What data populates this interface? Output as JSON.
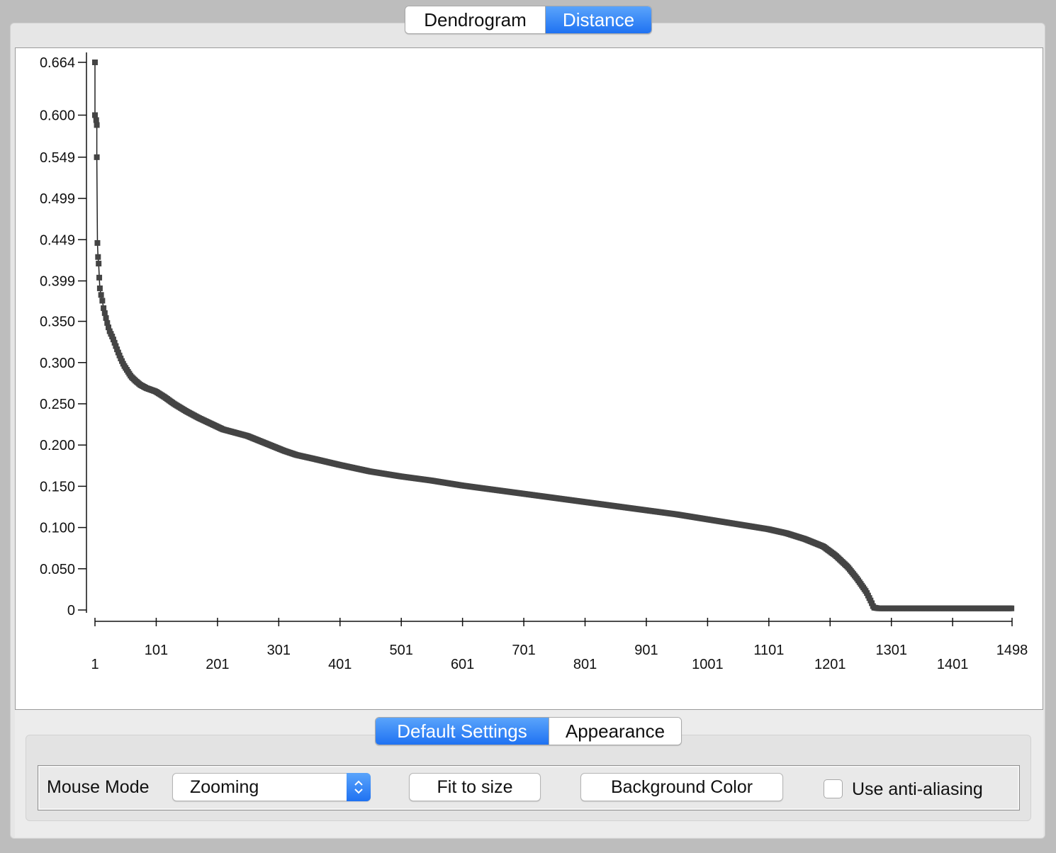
{
  "top_tabs": [
    {
      "label": "Dendrogram",
      "active": false
    },
    {
      "label": "Distance",
      "active": true
    }
  ],
  "chart_data": {
    "type": "scatter",
    "title": "",
    "xlabel": "",
    "ylabel": "",
    "xlim": [
      1,
      1498
    ],
    "ylim": [
      0,
      0.664
    ],
    "x_ticks": [
      1,
      101,
      201,
      301,
      401,
      501,
      601,
      701,
      801,
      901,
      1001,
      1101,
      1201,
      1301,
      1401,
      1498
    ],
    "y_ticks": [
      0,
      0.05,
      0.1,
      0.15,
      0.2,
      0.25,
      0.3,
      0.35,
      0.399,
      0.449,
      0.499,
      0.549,
      0.6,
      0.664
    ],
    "y_tick_labels": [
      "0",
      "0.050",
      "0.100",
      "0.150",
      "0.200",
      "0.250",
      "0.300",
      "0.350",
      "0.399",
      "0.449",
      "0.499",
      "0.549",
      "0.600",
      "0.664"
    ],
    "marker_color": "#444444",
    "series": [
      {
        "points": [
          [
            1,
            0.664
          ],
          [
            1,
            0.6
          ],
          [
            3,
            0.594
          ],
          [
            4,
            0.588
          ],
          [
            4,
            0.549
          ],
          [
            5,
            0.445
          ],
          [
            6,
            0.428
          ],
          [
            7,
            0.42
          ],
          [
            8,
            0.403
          ],
          [
            9,
            0.39
          ],
          [
            11,
            0.382
          ],
          [
            13,
            0.375
          ],
          [
            15,
            0.366
          ],
          [
            17,
            0.36
          ],
          [
            19,
            0.354
          ],
          [
            22,
            0.345
          ],
          [
            25,
            0.338
          ],
          [
            30,
            0.33
          ],
          [
            34,
            0.322
          ],
          [
            38,
            0.314
          ],
          [
            43,
            0.305
          ],
          [
            48,
            0.297
          ],
          [
            54,
            0.29
          ],
          [
            60,
            0.283
          ],
          [
            67,
            0.278
          ],
          [
            75,
            0.273
          ],
          [
            85,
            0.269
          ],
          [
            100,
            0.265
          ],
          [
            115,
            0.258
          ],
          [
            130,
            0.25
          ],
          [
            150,
            0.241
          ],
          [
            170,
            0.233
          ],
          [
            190,
            0.226
          ],
          [
            210,
            0.219
          ],
          [
            230,
            0.215
          ],
          [
            250,
            0.211
          ],
          [
            270,
            0.205
          ],
          [
            290,
            0.199
          ],
          [
            310,
            0.193
          ],
          [
            330,
            0.188
          ],
          [
            360,
            0.183
          ],
          [
            400,
            0.176
          ],
          [
            450,
            0.168
          ],
          [
            500,
            0.162
          ],
          [
            550,
            0.157
          ],
          [
            600,
            0.151
          ],
          [
            650,
            0.146
          ],
          [
            700,
            0.141
          ],
          [
            750,
            0.136
          ],
          [
            800,
            0.131
          ],
          [
            850,
            0.126
          ],
          [
            900,
            0.121
          ],
          [
            950,
            0.116
          ],
          [
            1000,
            0.11
          ],
          [
            1050,
            0.104
          ],
          [
            1100,
            0.098
          ],
          [
            1130,
            0.093
          ],
          [
            1160,
            0.086
          ],
          [
            1190,
            0.077
          ],
          [
            1210,
            0.066
          ],
          [
            1230,
            0.052
          ],
          [
            1245,
            0.038
          ],
          [
            1260,
            0.022
          ],
          [
            1268,
            0.01
          ],
          [
            1272,
            0.003
          ],
          [
            1280,
            0.002
          ],
          [
            1498,
            0.002
          ]
        ]
      }
    ]
  },
  "bottom_tabs": [
    {
      "label": "Default Settings",
      "active": true
    },
    {
      "label": "Appearance",
      "active": false
    }
  ],
  "settings": {
    "mouse_mode_label": "Mouse Mode",
    "mouse_mode_value": "Zooming",
    "fit_button": "Fit to size",
    "background_button": "Background Color",
    "antialias_label": "Use anti-aliasing",
    "antialias_checked": false
  }
}
